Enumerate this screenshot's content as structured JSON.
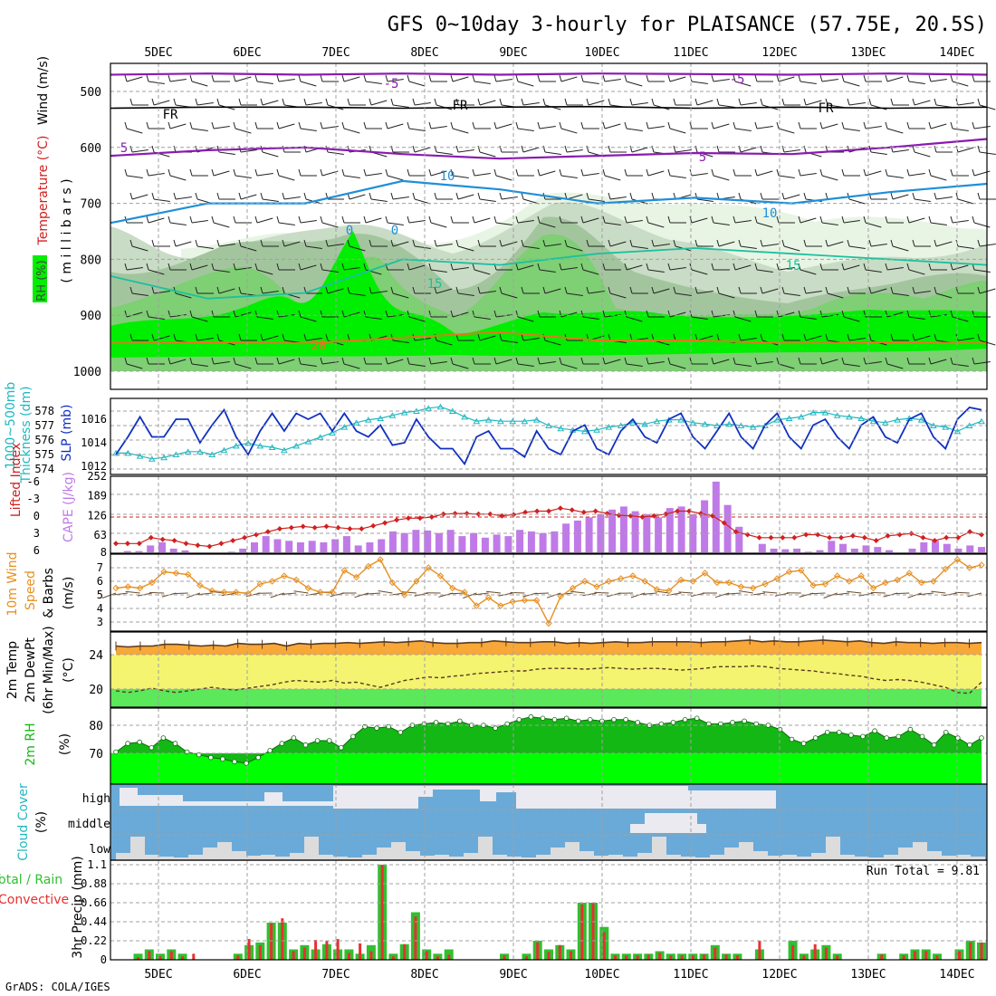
{
  "title": "GFS 0~10day 3-hourly for PLAISANCE (57.75E, 20.5S)",
  "credit": "GrADS: COLA/IGES",
  "x_axis": {
    "labels": [
      "5DEC",
      "6DEC",
      "7DEC",
      "8DEC",
      "9DEC",
      "10DEC",
      "11DEC",
      "12DEC",
      "13DEC",
      "14DEC"
    ]
  },
  "colors": {
    "rh_light": "#e8f5e4",
    "rh_mid1": "#c9dcc5",
    "rh_mid2": "#a3c59e",
    "rh_dark": "#7fcf74",
    "rh_bright": "#00ee00",
    "purple": "#8a1ab0",
    "black": "#000000",
    "blue": "#1f8fd8",
    "teal": "#1bc0a0",
    "orange": "#e07820",
    "slp": "#1030c0",
    "thickness": "#20b8c0",
    "cape": "#c07ae8",
    "lifted_index": "#d02020",
    "wind_speed": "#e89020",
    "barbs": "#6b4a2a",
    "temp_fill": "#f8a838",
    "dew_band": "#f4f470",
    "low_band": "#5be85b",
    "rh2m_dark": "#14b814",
    "rh2m_bright": "#00ff00",
    "cloud_blue": "#6aaad8",
    "cloud_light": "#eaeaf0",
    "cloud_grey": "#dcdcdc",
    "precip_total": "#30c030",
    "precip_conv": "#e83030",
    "grid": "#a0a0a0"
  },
  "chart_data": [
    {
      "id": "upper_air",
      "type": "heatmap",
      "ylabels": [
        "Wind (m/s)",
        "Temperature (°C)",
        "RH (%)"
      ],
      "ylabel_units": "( m i l l i b a r s )",
      "y_ticks": [
        500,
        600,
        700,
        800,
        900,
        1000
      ],
      "ylim": [
        1000,
        450
      ],
      "legend": [
        "RH (%)"
      ],
      "isotherm_labels": [
        "-5",
        "FR",
        "5",
        "10",
        "0",
        "15",
        "20"
      ],
      "isotherms": {
        "m5": [
          470,
          468,
          470,
          468,
          470,
          468,
          469,
          470,
          468,
          470
        ],
        "fr": [
          530,
          528,
          528,
          530,
          528,
          527,
          530,
          528,
          530,
          528
        ],
        "p5": [
          615,
          605,
          600,
          612,
          620,
          615,
          610,
          612,
          600,
          585
        ],
        "p10": [
          735,
          700,
          700,
          660,
          675,
          700,
          690,
          700,
          680,
          665
        ],
        "p15": [
          830,
          870,
          860,
          800,
          810,
          790,
          780,
          790,
          800,
          810
        ],
        "p20": [
          950,
          948,
          950,
          940,
          930,
          945,
          945,
          950,
          948,
          950
        ]
      },
      "rh_levels": [
        30,
        50,
        70,
        90
      ]
    },
    {
      "id": "slp_thickness",
      "type": "line",
      "ylabels": [
        "1000~500mb",
        "Thickness (dm)",
        "SLP (mb)"
      ],
      "left_ticks": [
        574,
        575,
        576,
        577,
        578
      ],
      "right_ticks": [
        1012,
        1014,
        1016
      ],
      "series": [
        {
          "name": "SLP",
          "axis": "right",
          "values": [
            1013,
            1014.5,
            1016.2,
            1014.5,
            1014.5,
            1016.0,
            1016.0,
            1014.0,
            1015.5,
            1016.8,
            1014.5,
            1013.0,
            1015.0,
            1016.5,
            1015.0,
            1016.5,
            1016.0,
            1016.5,
            1015.0,
            1016.5,
            1015.0,
            1014.5,
            1015.5,
            1013.8,
            1014.0,
            1016.0,
            1014.5,
            1013.5,
            1013.5,
            1012.2,
            1014.5,
            1015.0,
            1013.5,
            1013.5,
            1012.8,
            1015.0,
            1013.5,
            1013.0,
            1015.0,
            1015.5,
            1013.5,
            1013.0,
            1015.0,
            1016.0,
            1014.5,
            1014.0,
            1016.0,
            1016.5,
            1014.5,
            1013.5,
            1015.0,
            1016.5,
            1014.5,
            1013.5,
            1015.5,
            1016.5,
            1014.5,
            1013.5,
            1015.5,
            1016.0,
            1014.5,
            1013.5,
            1015.5,
            1016.2,
            1014.5,
            1014.0,
            1016.0,
            1016.5,
            1014.5,
            1013.5,
            1016.0,
            1017.0,
            1016.8
          ]
        },
        {
          "name": "Thickness",
          "axis": "left",
          "values": [
            575.1,
            575.1,
            574.9,
            574.7,
            574.8,
            575.0,
            575.2,
            575.2,
            575.0,
            575.3,
            575.6,
            575.8,
            575.6,
            575.5,
            575.3,
            575.6,
            575.9,
            576.2,
            576.5,
            576.9,
            577.2,
            577.4,
            577.5,
            577.7,
            577.9,
            578.0,
            578.2,
            578.3,
            578.0,
            577.6,
            577.3,
            577.4,
            577.3,
            577.3,
            577.3,
            577.4,
            577.0,
            576.8,
            576.7,
            576.6,
            576.7,
            576.9,
            577.0,
            577.2,
            577.1,
            577.3,
            577.4,
            577.4,
            577.2,
            577.1,
            577.0,
            577.1,
            577.0,
            576.9,
            577.0,
            577.4,
            577.5,
            577.6,
            577.9,
            577.9,
            577.7,
            577.6,
            577.5,
            577.3,
            577.2,
            577.4,
            577.5,
            577.4,
            577.0,
            576.9,
            576.6,
            577.0,
            577.3
          ]
        }
      ]
    },
    {
      "id": "cape_li",
      "type": "bar",
      "ylabels": [
        "Lifted Index",
        "CAPE (J/kg)"
      ],
      "left_ticks": [
        "6",
        "3",
        "0",
        "-3",
        "-6"
      ],
      "right_ticks": [
        8,
        63,
        126,
        189,
        252
      ],
      "series": [
        {
          "name": "CAPE",
          "axis": "right",
          "values": [
            8,
            12,
            12,
            30,
            40,
            20,
            14,
            8,
            8,
            4,
            10,
            20,
            40,
            60,
            50,
            45,
            40,
            45,
            40,
            50,
            60,
            30,
            40,
            50,
            75,
            70,
            80,
            78,
            70,
            80,
            60,
            70,
            55,
            65,
            60,
            80,
            75,
            70,
            75,
            100,
            110,
            120,
            130,
            145,
            155,
            140,
            130,
            120,
            150,
            155,
            130,
            175,
            235,
            160,
            90,
            8,
            35,
            20,
            18,
            20,
            10,
            15,
            45,
            35,
            20,
            30,
            25,
            15,
            8,
            20,
            40,
            45,
            35,
            20,
            30,
            25
          ]
        },
        {
          "name": "Lifted Index",
          "axis": "left",
          "values": [
            4.5,
            4.5,
            4.5,
            3.5,
            3.8,
            4.0,
            4.5,
            4.8,
            5.0,
            4.5,
            4.0,
            3.5,
            3.0,
            2.5,
            2.0,
            1.8,
            1.6,
            1.8,
            1.6,
            1.8,
            2.0,
            2.0,
            1.5,
            1.0,
            0.5,
            0.2,
            0.2,
            0.0,
            -0.5,
            -0.6,
            -0.6,
            -0.5,
            -0.5,
            -0.2,
            -0.4,
            -0.8,
            -1.0,
            -1.0,
            -1.5,
            -1.2,
            -0.8,
            -1.0,
            -0.6,
            -0.3,
            -0.2,
            0.0,
            -0.2,
            -0.5,
            -1.0,
            -1.0,
            -0.6,
            -0.2,
            1.0,
            2.5,
            3.0,
            3.5,
            3.5,
            3.5,
            3.5,
            3.0,
            3.0,
            3.5,
            3.5,
            3.2,
            3.5,
            4.0,
            3.2,
            3.0,
            2.8,
            3.5,
            4.0,
            3.5,
            3.5,
            2.5,
            3.0
          ]
        }
      ]
    },
    {
      "id": "wind10m",
      "type": "line",
      "ylabels": [
        "10m Wind",
        "Speed",
        "& Barbs",
        "(m/s)"
      ],
      "left_ticks": [
        3,
        4,
        5,
        6,
        7
      ],
      "series": [
        {
          "name": "Speed",
          "values": [
            5.5,
            5.6,
            5.5,
            5.9,
            6.7,
            6.6,
            6.5,
            5.7,
            5.3,
            5.2,
            5.2,
            5.1,
            5.8,
            6.0,
            6.4,
            6.1,
            5.5,
            5.2,
            5.2,
            6.8,
            6.3,
            7.1,
            7.6,
            5.9,
            5.0,
            6.0,
            7.0,
            6.4,
            5.5,
            5.2,
            4.2,
            4.8,
            4.2,
            4.5,
            4.6,
            4.6,
            2.9,
            4.9,
            5.5,
            6.0,
            5.6,
            6.0,
            6.2,
            6.4,
            6.0,
            5.4,
            5.3,
            6.1,
            6.0,
            6.6,
            5.9,
            5.9,
            5.6,
            5.5,
            5.8,
            6.2,
            6.7,
            6.8,
            5.7,
            5.8,
            6.4,
            6.0,
            6.4,
            5.5,
            5.9,
            6.1,
            6.6,
            5.9,
            6.0,
            6.9,
            7.6,
            7.0,
            7.2
          ]
        }
      ]
    },
    {
      "id": "temp2m",
      "type": "area",
      "ylabels": [
        "2m Temp",
        "2m DewPt",
        "(6hr Min/Max)",
        "(°C)"
      ],
      "left_ticks": [
        20,
        24
      ],
      "ylim": [
        18,
        27
      ],
      "series": [
        {
          "name": "2m Temp",
          "values": [
            25.0,
            24.9,
            25.0,
            25.0,
            25.2,
            25.2,
            25.1,
            25.0,
            25.1,
            25.0,
            25.3,
            25.2,
            25.2,
            25.3,
            25.0,
            25.3,
            25.2,
            25.3,
            25.3,
            25.4,
            25.3,
            25.4,
            25.5,
            25.4,
            25.5,
            25.6,
            25.4,
            25.3,
            25.3,
            25.4,
            25.4,
            25.6,
            25.5,
            25.4,
            25.4,
            25.5,
            25.5,
            25.3,
            25.4,
            25.3,
            25.4,
            25.5,
            25.4,
            25.4,
            25.5,
            25.5,
            25.5,
            25.5,
            25.4,
            25.5,
            25.5,
            25.6,
            25.7,
            25.5,
            25.6,
            25.5,
            25.5,
            25.6,
            25.7,
            25.6,
            25.5,
            25.6,
            25.4,
            25.3,
            25.5,
            25.4,
            25.4,
            25.3,
            25.4,
            25.4,
            25.3,
            25.4
          ]
        },
        {
          "name": "2m DewPt",
          "values": [
            19.8,
            19.6,
            19.8,
            20.1,
            19.8,
            19.6,
            19.8,
            20.0,
            20.2,
            20.0,
            19.9,
            20.1,
            20.3,
            20.5,
            20.8,
            21.0,
            20.9,
            20.8,
            21.0,
            20.7,
            20.8,
            20.5,
            20.2,
            20.6,
            21.0,
            21.2,
            21.4,
            21.3,
            21.5,
            21.6,
            21.8,
            21.9,
            22.0,
            22.1,
            22.1,
            22.3,
            22.4,
            22.4,
            22.4,
            22.3,
            22.4,
            22.5,
            22.4,
            22.3,
            22.4,
            22.4,
            22.3,
            22.2,
            22.3,
            22.4,
            22.6,
            22.6,
            22.6,
            22.7,
            22.6,
            22.4,
            22.3,
            22.2,
            22.1,
            21.9,
            21.8,
            21.6,
            21.5,
            21.2,
            21.0,
            21.1,
            21.0,
            20.8,
            20.5,
            20.2,
            19.6,
            19.5,
            20.8
          ]
        }
      ]
    },
    {
      "id": "rh2m",
      "type": "area",
      "ylabels": [
        "2m RH",
        "(%)"
      ],
      "left_ticks": [
        70,
        80
      ],
      "ylim": [
        65,
        85
      ],
      "series": [
        {
          "name": "2m RH",
          "values": [
            70.5,
            73.5,
            74.0,
            72.0,
            75.5,
            73.5,
            70.5,
            69.5,
            68.5,
            68.0,
            67.0,
            66.5,
            68.5,
            71.0,
            73.5,
            75.5,
            73.0,
            74.5,
            74.5,
            72.0,
            76.0,
            79.5,
            79.0,
            79.5,
            77.5,
            80.0,
            80.5,
            81.0,
            80.5,
            81.5,
            80.0,
            80.0,
            79.0,
            80.5,
            82.0,
            83.0,
            82.5,
            82.0,
            82.5,
            81.5,
            82.0,
            81.5,
            82.0,
            82.0,
            81.0,
            80.0,
            80.5,
            81.0,
            82.0,
            82.5,
            80.5,
            80.5,
            81.0,
            81.5,
            80.5,
            80.0,
            78.5,
            75.0,
            73.5,
            75.5,
            77.5,
            77.5,
            76.5,
            76.0,
            78.0,
            75.5,
            76.0,
            78.5,
            76.0,
            73.0,
            77.5,
            75.5,
            73.0,
            75.5
          ]
        }
      ]
    },
    {
      "id": "cloud_cover",
      "type": "area",
      "ylabels": [
        "Cloud Cover",
        "(%)"
      ],
      "level_labels": [
        "high",
        "middle",
        "low"
      ]
    },
    {
      "id": "precip",
      "type": "bar",
      "ylabels": [
        "Total / Rain",
        "Convective",
        "3hr Precip (mm)"
      ],
      "left_ticks": [
        0,
        0.22,
        0.44,
        0.66,
        0.88,
        1.1
      ],
      "ylim": [
        0,
        1.1
      ],
      "annotation": "Run Total = 9.81",
      "legend": [
        "Total / Rain",
        "Convective"
      ],
      "series": [
        {
          "name": "Total / Rain",
          "values": [
            0.0,
            0.0,
            0.07,
            0.12,
            0.07,
            0.12,
            0.07,
            0.0,
            0.0,
            0.0,
            0.0,
            0.07,
            0.17,
            0.2,
            0.43,
            0.43,
            0.12,
            0.17,
            0.12,
            0.18,
            0.12,
            0.12,
            0.07,
            0.17,
            1.1,
            0.07,
            0.18,
            0.55,
            0.12,
            0.07,
            0.12,
            0.0,
            0.0,
            0.0,
            0.0,
            0.07,
            0.0,
            0.07,
            0.22,
            0.12,
            0.17,
            0.12,
            0.66,
            0.66,
            0.38,
            0.07,
            0.07,
            0.07,
            0.07,
            0.1,
            0.07,
            0.07,
            0.07,
            0.07,
            0.17,
            0.07,
            0.07,
            0.0,
            0.12,
            0.0,
            0.0,
            0.22,
            0.07,
            0.12,
            0.17,
            0.07,
            0.0,
            0.0,
            0.0,
            0.07,
            0.0,
            0.07,
            0.12,
            0.12,
            0.07,
            0.0,
            0.12,
            0.22,
            0.2
          ]
        },
        {
          "name": "Convective",
          "values": [
            0.0,
            0.0,
            0.03,
            0.1,
            0.04,
            0.1,
            0.04,
            0.07,
            0.0,
            0.0,
            0.0,
            0.05,
            0.24,
            0.17,
            0.42,
            0.48,
            0.1,
            0.14,
            0.23,
            0.22,
            0.24,
            0.08,
            0.19,
            0.1,
            1.1,
            0.04,
            0.18,
            0.5,
            0.1,
            0.04,
            0.06,
            0.0,
            0.0,
            0.0,
            0.0,
            0.05,
            0.0,
            0.04,
            0.2,
            0.09,
            0.17,
            0.1,
            0.64,
            0.66,
            0.32,
            0.05,
            0.05,
            0.05,
            0.06,
            0.08,
            0.05,
            0.05,
            0.05,
            0.06,
            0.14,
            0.06,
            0.05,
            0.0,
            0.22,
            0.0,
            0.0,
            0.17,
            0.05,
            0.18,
            0.14,
            0.05,
            0.0,
            0.0,
            0.0,
            0.06,
            0.0,
            0.05,
            0.1,
            0.1,
            0.05,
            0.0,
            0.1,
            0.2,
            0.2
          ]
        }
      ]
    }
  ]
}
